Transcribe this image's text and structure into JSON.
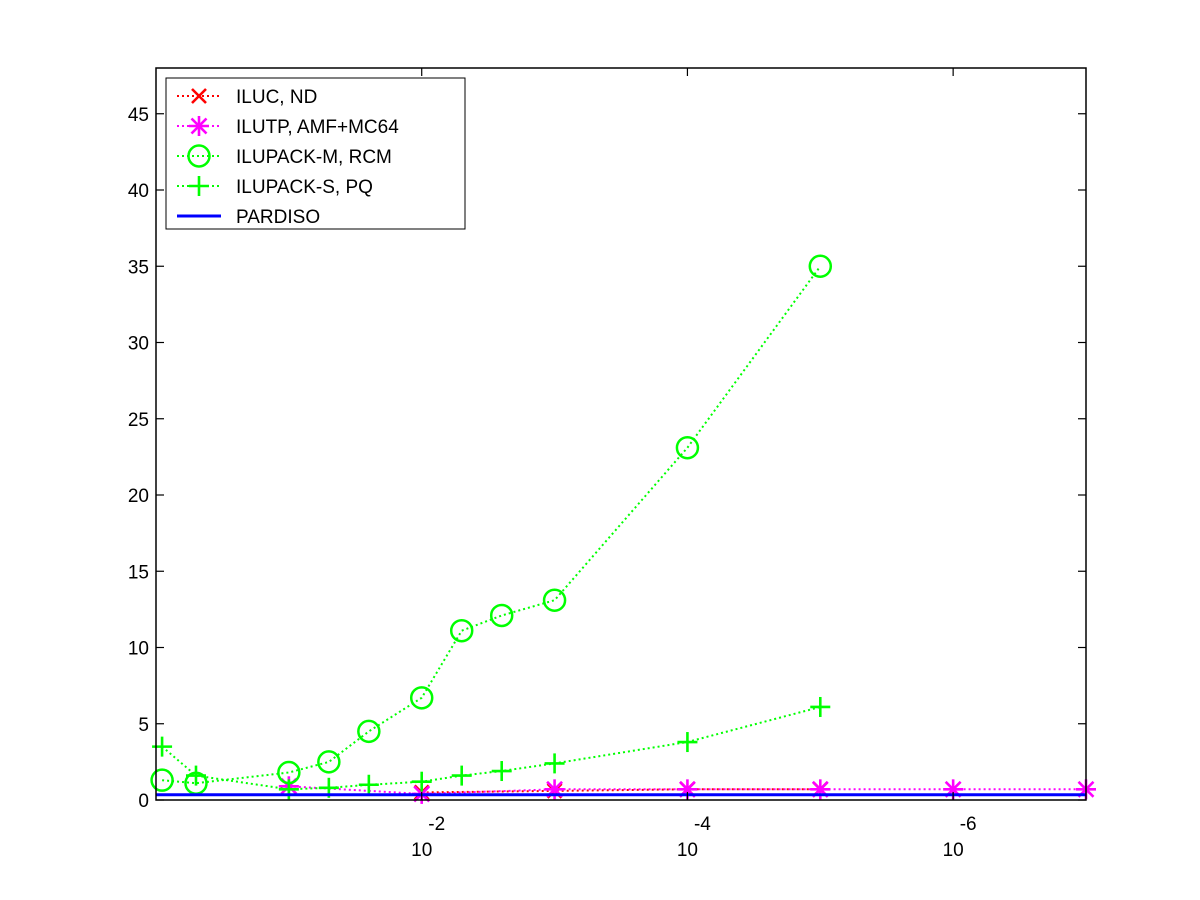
{
  "chart_data": {
    "type": "line",
    "title": "",
    "xlabel": "",
    "ylabel": "",
    "x_scale": "log",
    "x_reversed": true,
    "xlim": [
      1.0,
      1e-07
    ],
    "ylim": [
      0,
      48
    ],
    "grid": false,
    "legend_position": "top-left",
    "y_ticks": [
      0,
      5,
      10,
      15,
      20,
      25,
      30,
      35,
      40,
      45
    ],
    "x_ticks": [
      {
        "value": 0.01,
        "base": "10",
        "exponent": "-2"
      },
      {
        "value": 0.0001,
        "base": "10",
        "exponent": "-4"
      },
      {
        "value": 1e-06,
        "base": "10",
        "exponent": "-6"
      }
    ],
    "series": [
      {
        "name": "ILUC,  ND",
        "color": "#ff0000",
        "marker": "x",
        "line": "dotted",
        "x": [
          0.01,
          0.001,
          0.0001,
          1e-05
        ],
        "y": [
          0.5,
          0.6,
          0.7,
          0.7
        ]
      },
      {
        "name": "ILUTP, AMF+MC64",
        "color": "#ff00ff",
        "marker": "asterisk",
        "line": "dotted",
        "x": [
          0.1,
          0.01,
          0.001,
          0.0001,
          1e-05,
          1e-06,
          1e-07
        ],
        "y": [
          0.9,
          0.4,
          0.7,
          0.7,
          0.7,
          0.7,
          0.7
        ]
      },
      {
        "name": "ILUPACK-M, RCM",
        "color": "#00ff00",
        "marker": "circle",
        "line": "dotted",
        "x": [
          0.9,
          0.5,
          0.1,
          0.05,
          0.025,
          0.01,
          0.005,
          0.0025,
          0.001,
          0.0001,
          1e-05
        ],
        "y": [
          1.3,
          1.1,
          1.8,
          2.5,
          4.5,
          6.7,
          11.1,
          12.1,
          13.1,
          23.1,
          35.0
        ]
      },
      {
        "name": "ILUPACK-S, PQ",
        "color": "#00ff00",
        "marker": "plus",
        "line": "dotted",
        "x": [
          0.9,
          0.5,
          0.1,
          0.05,
          0.025,
          0.01,
          0.005,
          0.0025,
          0.001,
          0.0001,
          1e-05
        ],
        "y": [
          3.5,
          1.6,
          0.7,
          0.8,
          1.0,
          1.2,
          1.6,
          1.9,
          2.4,
          3.8,
          6.1
        ]
      },
      {
        "name": "PARDISO",
        "color": "#0000ff",
        "marker": "none",
        "line": "solid",
        "x": [
          1.0,
          1e-07
        ],
        "y": [
          0.35,
          0.35
        ]
      }
    ]
  }
}
